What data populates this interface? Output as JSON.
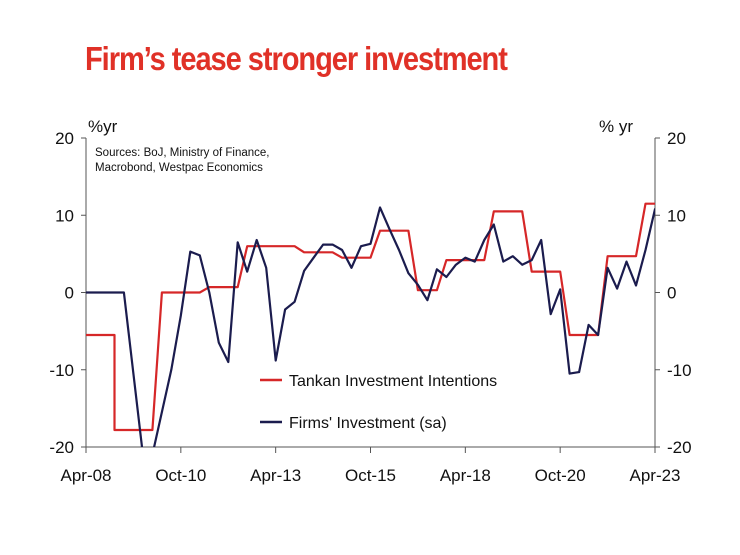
{
  "colors": {
    "title": "#e03127",
    "series1": "#d62728",
    "series2": "#1b1c4e",
    "axis": "#555555"
  },
  "header": {
    "title": "Firm’s tease stronger investment"
  },
  "chart_data": {
    "type": "line",
    "left_unit": "%yr",
    "right_unit": "% yr",
    "source_lines": [
      "Sources: BoJ, Ministry of Finance,",
      "Macrobond, Westpac Economics"
    ],
    "x_ticks": [
      "Apr-08",
      "Oct-10",
      "Apr-13",
      "Oct-15",
      "Apr-18",
      "Oct-20",
      "Apr-23"
    ],
    "y_ticks": [
      "20",
      "10",
      "0",
      "-10",
      "-20"
    ],
    "ylim": [
      -20,
      20
    ],
    "xlim": [
      "2008-04",
      "2023-04"
    ],
    "legend_placement": "center",
    "series": [
      {
        "name": "Tankan Investment Intentions",
        "color": "#d62728",
        "points": [
          [
            "2008-04",
            -5.5
          ],
          [
            "2009-01",
            -5.5
          ],
          [
            "2009-01",
            -17.8
          ],
          [
            "2010-01",
            -17.8
          ],
          [
            "2010-04",
            0
          ],
          [
            "2011-04",
            0
          ],
          [
            "2011-07",
            0.7
          ],
          [
            "2012-04",
            0.7
          ],
          [
            "2012-07",
            6
          ],
          [
            "2013-10",
            6
          ],
          [
            "2014-01",
            5.2
          ],
          [
            "2014-10",
            5.2
          ],
          [
            "2015-01",
            4.5
          ],
          [
            "2015-10",
            4.5
          ],
          [
            "2016-01",
            8
          ],
          [
            "2016-10",
            8
          ],
          [
            "2017-01",
            0.3
          ],
          [
            "2017-07",
            0.3
          ],
          [
            "2017-10",
            4.2
          ],
          [
            "2018-10",
            4.2
          ],
          [
            "2019-01",
            10.5
          ],
          [
            "2019-10",
            10.5
          ],
          [
            "2020-01",
            2.7
          ],
          [
            "2020-10",
            2.7
          ],
          [
            "2021-01",
            -5.5
          ],
          [
            "2021-10",
            -5.5
          ],
          [
            "2022-01",
            4.7
          ],
          [
            "2022-10",
            4.7
          ],
          [
            "2023-01",
            11.5
          ],
          [
            "2023-10",
            11.5
          ]
        ]
      },
      {
        "name": "Firms' Investment (sa)",
        "color": "#1b1c4e",
        "points": [
          [
            "2008-04",
            0
          ],
          [
            "2009-01",
            0
          ],
          [
            "2009-04",
            0
          ],
          [
            "2009-10",
            -21
          ],
          [
            "2010-01",
            -21
          ],
          [
            "2010-07",
            -10
          ],
          [
            "2010-10",
            -3
          ],
          [
            "2011-01",
            5.3
          ],
          [
            "2011-04",
            4.8
          ],
          [
            "2011-07",
            0
          ],
          [
            "2011-10",
            -6.5
          ],
          [
            "2012-01",
            -9
          ],
          [
            "2012-04",
            6.5
          ],
          [
            "2012-07",
            2.7
          ],
          [
            "2012-10",
            6.8
          ],
          [
            "2013-01",
            3.2
          ],
          [
            "2013-04",
            -8.8
          ],
          [
            "2013-07",
            -2.2
          ],
          [
            "2013-10",
            -1.2
          ],
          [
            "2014-01",
            2.8
          ],
          [
            "2014-04",
            4.5
          ],
          [
            "2014-07",
            6.2
          ],
          [
            "2014-10",
            6.2
          ],
          [
            "2015-01",
            5.5
          ],
          [
            "2015-04",
            3.2
          ],
          [
            "2015-07",
            6
          ],
          [
            "2015-10",
            6.3
          ],
          [
            "2016-01",
            11
          ],
          [
            "2016-04",
            8.2
          ],
          [
            "2016-07",
            5.5
          ],
          [
            "2016-10",
            2.5
          ],
          [
            "2017-01",
            1
          ],
          [
            "2017-04",
            -1
          ],
          [
            "2017-07",
            3
          ],
          [
            "2017-10",
            2
          ],
          [
            "2018-01",
            3.6
          ],
          [
            "2018-04",
            4.5
          ],
          [
            "2018-07",
            4
          ],
          [
            "2018-10",
            6.8
          ],
          [
            "2019-01",
            8.8
          ],
          [
            "2019-04",
            4
          ],
          [
            "2019-07",
            4.7
          ],
          [
            "2019-10",
            3.6
          ],
          [
            "2020-01",
            4.2
          ],
          [
            "2020-04",
            6.8
          ],
          [
            "2020-07",
            -2.8
          ],
          [
            "2020-10",
            0.4
          ],
          [
            "2021-01",
            -10.5
          ],
          [
            "2021-04",
            -10.3
          ],
          [
            "2021-07",
            -4.2
          ],
          [
            "2021-10",
            -5.5
          ],
          [
            "2022-01",
            3.2
          ],
          [
            "2022-04",
            0.5
          ],
          [
            "2022-07",
            4
          ],
          [
            "2022-10",
            0.9
          ],
          [
            "2023-01",
            5.5
          ],
          [
            "2023-04",
            10.8
          ],
          [
            "2023-07",
            7.8
          ],
          [
            "2023-10",
            11.5
          ]
        ]
      }
    ]
  }
}
